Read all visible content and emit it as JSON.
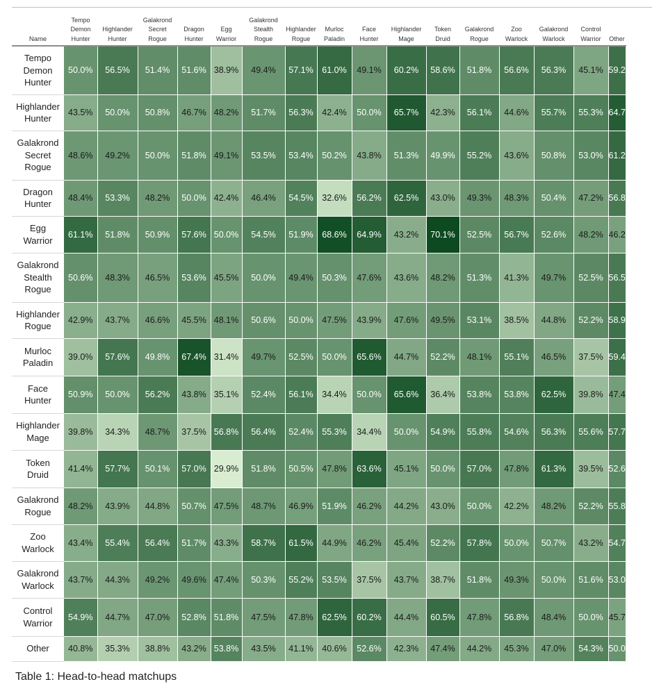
{
  "chart_data": {
    "type": "heatmap",
    "title": "",
    "name_header": "Name",
    "columns": [
      "Tempo Demon Hunter",
      "Highlander Hunter",
      "Galakrond Secret Rogue",
      "Dragon Hunter",
      "Egg Warrior",
      "Galakrond Stealth Rogue",
      "Highlander Rogue",
      "Murloc Paladin",
      "Face Hunter",
      "Highlander Mage",
      "Token Druid",
      "Galakrond Rogue",
      "Zoo Warlock",
      "Galakrond Warlock",
      "Control Warrior",
      "Other"
    ],
    "column_labels": [
      [
        "Tempo",
        "Demon",
        "Hunter"
      ],
      [
        "Highlander",
        "Hunter"
      ],
      [
        "Galakrond",
        "Secret",
        "Rogue"
      ],
      [
        "Dragon",
        "Hunter"
      ],
      [
        "Egg",
        "Warrior"
      ],
      [
        "Galakrond",
        "Stealth",
        "Rogue"
      ],
      [
        "Highlander",
        "Rogue"
      ],
      [
        "Murloc",
        "Paladin"
      ],
      [
        "Face",
        "Hunter"
      ],
      [
        "Highlander",
        "Mage"
      ],
      [
        "Token",
        "Druid"
      ],
      [
        "Galakrond",
        "Rogue"
      ],
      [
        "Zoo",
        "Warlock"
      ],
      [
        "Galakrond",
        "Warlock"
      ],
      [
        "Control",
        "Warrior"
      ],
      [
        "Other"
      ]
    ],
    "rows": [
      {
        "name": [
          "Tempo",
          "Demon",
          "Hunter"
        ],
        "values": [
          50.0,
          56.5,
          51.4,
          51.6,
          38.9,
          49.4,
          57.1,
          61.0,
          49.1,
          60.2,
          58.6,
          51.8,
          56.6,
          56.3,
          45.1,
          59.2
        ]
      },
      {
        "name": [
          "Highlander",
          "Hunter"
        ],
        "values": [
          43.5,
          50.0,
          50.8,
          46.7,
          48.2,
          51.7,
          56.3,
          42.4,
          50.0,
          65.7,
          42.3,
          56.1,
          44.6,
          55.7,
          55.3,
          64.7
        ]
      },
      {
        "name": [
          "Galakrond",
          "Secret",
          "Rogue"
        ],
        "values": [
          48.6,
          49.2,
          50.0,
          51.8,
          49.1,
          53.5,
          53.4,
          50.2,
          43.8,
          51.3,
          49.9,
          55.2,
          43.6,
          50.8,
          53.0,
          61.2
        ]
      },
      {
        "name": [
          "Dragon",
          "Hunter"
        ],
        "values": [
          48.4,
          53.3,
          48.2,
          50.0,
          42.4,
          46.4,
          54.5,
          32.6,
          56.2,
          62.5,
          43.0,
          49.3,
          48.3,
          50.4,
          47.2,
          56.8
        ]
      },
      {
        "name": [
          "Egg",
          "Warrior"
        ],
        "values": [
          61.1,
          51.8,
          50.9,
          57.6,
          50.0,
          54.5,
          51.9,
          68.6,
          64.9,
          43.2,
          70.1,
          52.5,
          56.7,
          52.6,
          48.2,
          46.2
        ]
      },
      {
        "name": [
          "Galakrond",
          "Stealth",
          "Rogue"
        ],
        "values": [
          50.6,
          48.3,
          46.5,
          53.6,
          45.5,
          50.0,
          49.4,
          50.3,
          47.6,
          43.6,
          48.2,
          51.3,
          41.3,
          49.7,
          52.5,
          56.5
        ]
      },
      {
        "name": [
          "Highlander",
          "Rogue"
        ],
        "values": [
          42.9,
          43.7,
          46.6,
          45.5,
          48.1,
          50.6,
          50.0,
          47.5,
          43.9,
          47.6,
          49.5,
          53.1,
          38.5,
          44.8,
          52.2,
          58.9
        ]
      },
      {
        "name": [
          "Murloc",
          "Paladin"
        ],
        "values": [
          39.0,
          57.6,
          49.8,
          67.4,
          31.4,
          49.7,
          52.5,
          50.0,
          65.6,
          44.7,
          52.2,
          48.1,
          55.1,
          46.5,
          37.5,
          59.4
        ]
      },
      {
        "name": [
          "Face",
          "Hunter"
        ],
        "values": [
          50.9,
          50.0,
          56.2,
          43.8,
          35.1,
          52.4,
          56.1,
          34.4,
          50.0,
          65.6,
          36.4,
          53.8,
          53.8,
          62.5,
          39.8,
          47.4
        ]
      },
      {
        "name": [
          "Highlander",
          "Mage"
        ],
        "values": [
          39.8,
          34.3,
          48.7,
          37.5,
          56.8,
          56.4,
          52.4,
          55.3,
          34.4,
          50.0,
          54.9,
          55.8,
          54.6,
          56.3,
          55.6,
          57.7
        ]
      },
      {
        "name": [
          "Token",
          "Druid"
        ],
        "values": [
          41.4,
          57.7,
          50.1,
          57.0,
          29.9,
          51.8,
          50.5,
          47.8,
          63.6,
          45.1,
          50.0,
          57.0,
          47.8,
          61.3,
          39.5,
          52.6
        ]
      },
      {
        "name": [
          "Galakrond",
          "Rogue"
        ],
        "values": [
          48.2,
          43.9,
          44.8,
          50.7,
          47.5,
          48.7,
          46.9,
          51.9,
          46.2,
          44.2,
          43.0,
          50.0,
          42.2,
          48.2,
          52.2,
          55.8
        ]
      },
      {
        "name": [
          "Zoo",
          "Warlock"
        ],
        "values": [
          43.4,
          55.4,
          56.4,
          51.7,
          43.3,
          58.7,
          61.5,
          44.9,
          46.2,
          45.4,
          52.2,
          57.8,
          50.0,
          50.7,
          43.2,
          54.7
        ]
      },
      {
        "name": [
          "Galakrond",
          "Warlock"
        ],
        "values": [
          43.7,
          44.3,
          49.2,
          49.6,
          47.4,
          50.3,
          55.2,
          53.5,
          37.5,
          43.7,
          38.7,
          51.8,
          49.3,
          50.0,
          51.6,
          53.0
        ]
      },
      {
        "name": [
          "Control",
          "Warrior"
        ],
        "values": [
          54.9,
          44.7,
          47.0,
          52.8,
          51.8,
          47.5,
          47.8,
          62.5,
          60.2,
          44.4,
          60.5,
          47.8,
          56.8,
          48.4,
          50.0,
          45.7
        ]
      },
      {
        "name": [
          "Other"
        ],
        "values": [
          40.8,
          35.3,
          38.8,
          43.2,
          53.8,
          43.5,
          41.1,
          40.6,
          52.6,
          42.3,
          47.4,
          44.2,
          45.3,
          47.0,
          54.3,
          50.0
        ]
      }
    ],
    "value_suffix": "%",
    "color_scale": [
      "#d8edd0",
      "#0d4a20"
    ],
    "caption": "Table 1: Head-to-head matchups"
  }
}
